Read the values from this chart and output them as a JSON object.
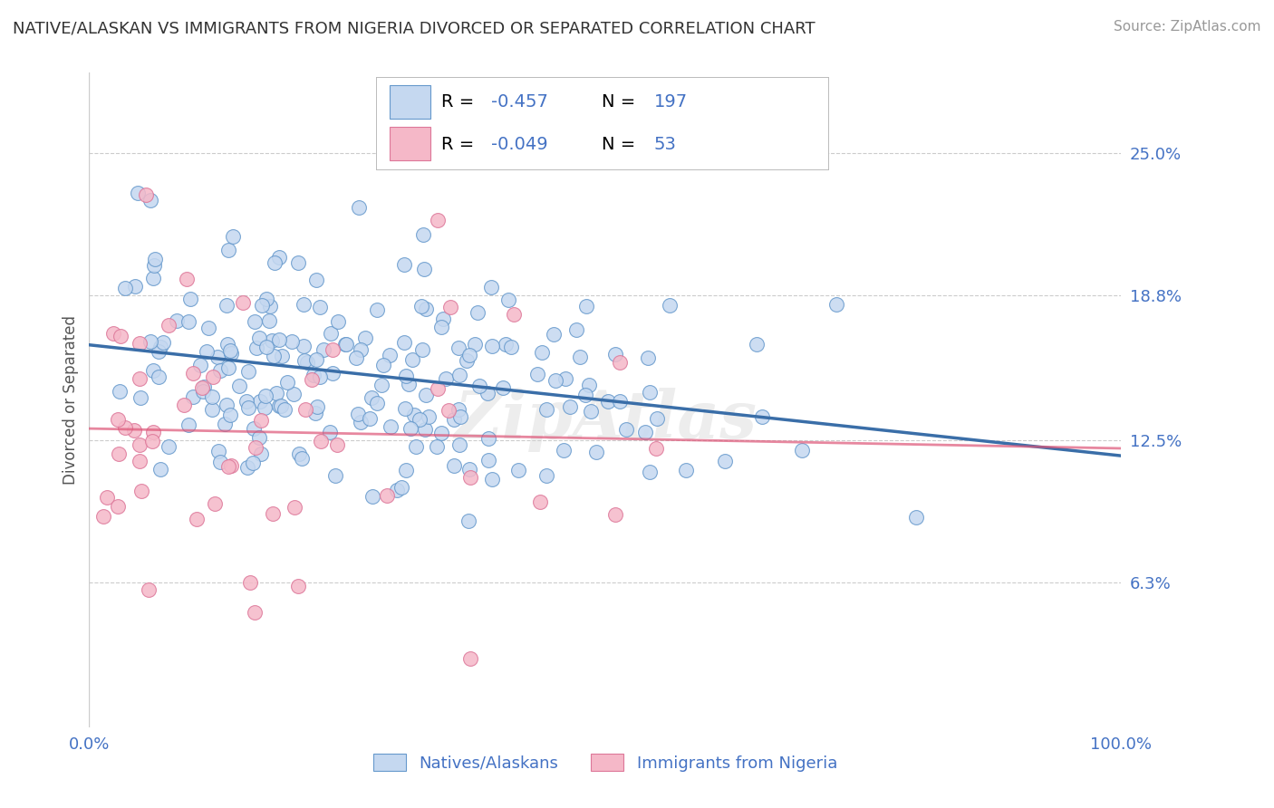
{
  "title": "NATIVE/ALASKAN VS IMMIGRANTS FROM NIGERIA DIVORCED OR SEPARATED CORRELATION CHART",
  "source": "Source: ZipAtlas.com",
  "ylabel": "Divorced or Separated",
  "blue_R": -0.457,
  "blue_N": 197,
  "pink_R": -0.049,
  "pink_N": 53,
  "blue_dot_face": "#c5d8f0",
  "blue_dot_edge": "#6699cc",
  "blue_line_color": "#3a6ea8",
  "pink_dot_face": "#f5b8c8",
  "pink_dot_edge": "#dd7799",
  "pink_line_color": "#dd5577",
  "grid_color": "#cccccc",
  "tick_color": "#4472c4",
  "title_color": "#333333",
  "source_color": "#999999",
  "legend_text_color": "#000000",
  "legend_num_color": "#4472c4",
  "legend_label_blue": "Natives/Alaskans",
  "legend_label_pink": "Immigrants from Nigeria",
  "ytick_values": [
    0.063,
    0.125,
    0.188,
    0.25
  ],
  "ytick_labels": [
    "6.3%",
    "12.5%",
    "18.8%",
    "25.0%"
  ],
  "xlim": [
    0.0,
    1.0
  ],
  "ylim": [
    0.0,
    0.285
  ],
  "watermark": "ZipAtlas"
}
